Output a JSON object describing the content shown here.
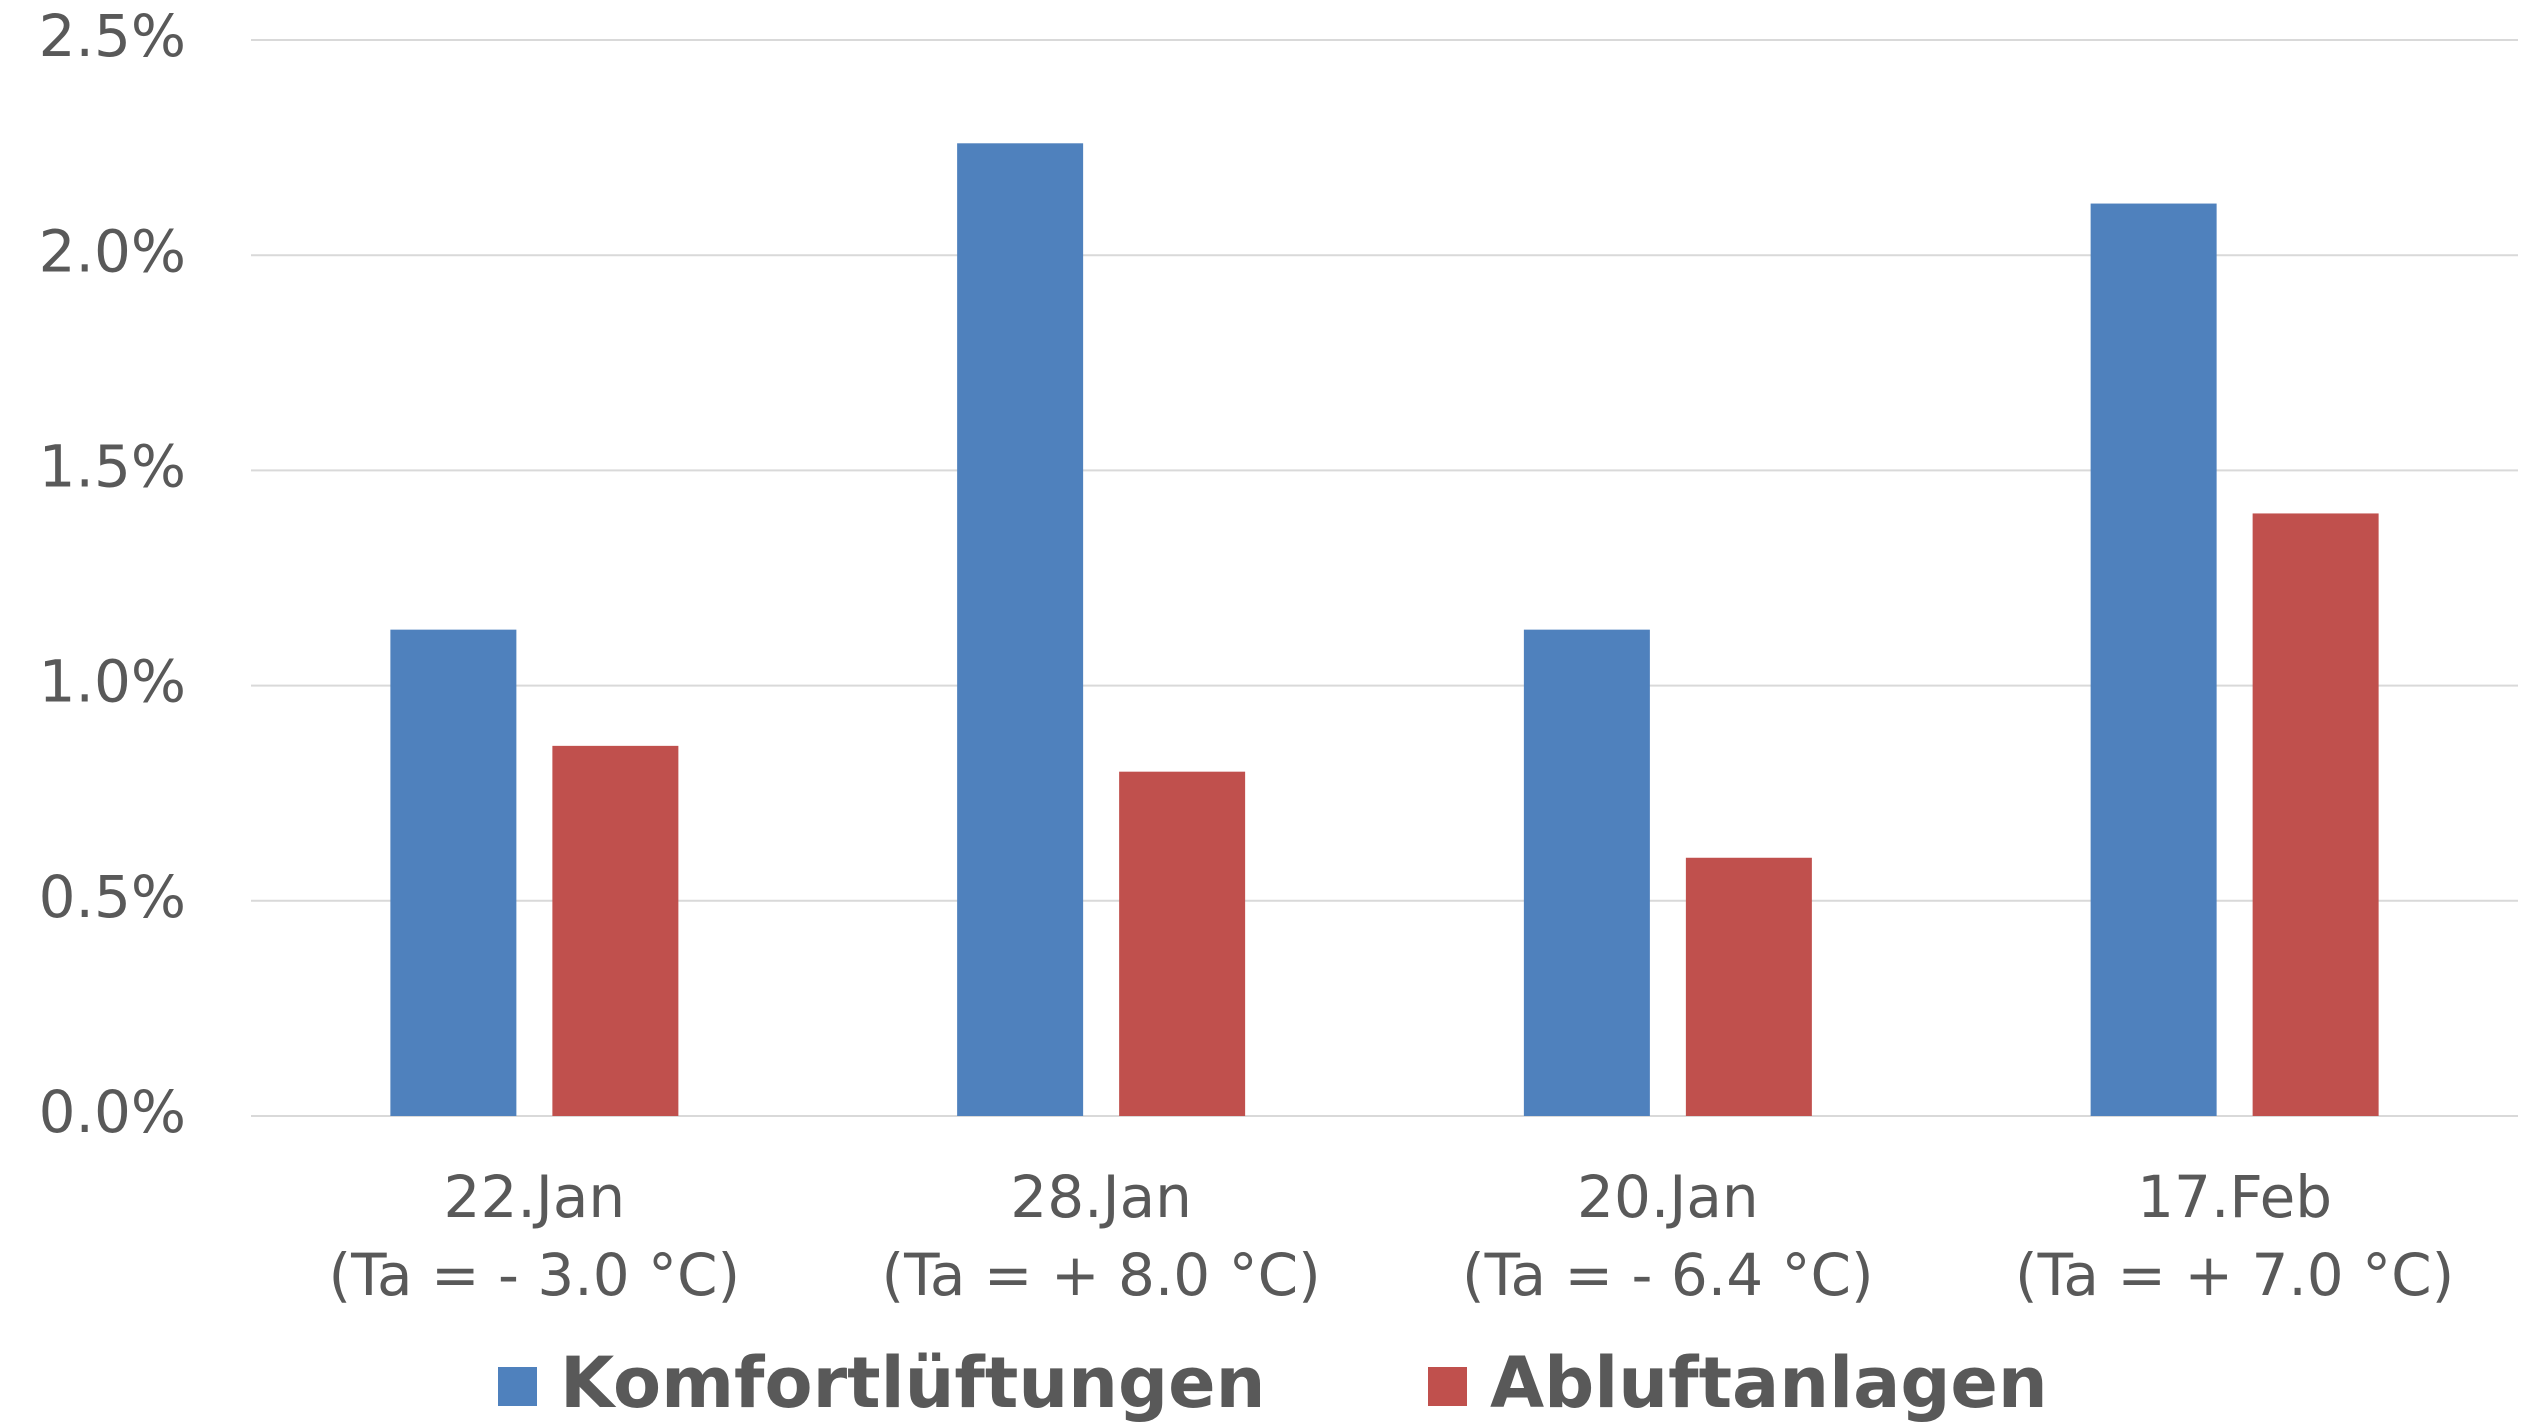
{
  "chart_data": {
    "type": "bar",
    "categories": [
      [
        "22.Jan",
        "(Ta = - 3.0 °C)"
      ],
      [
        "28.Jan",
        "(Ta = + 8.0 °C)"
      ],
      [
        "20.Jan",
        "(Ta = - 6.4 °C)"
      ],
      [
        "17.Feb",
        "(Ta = + 7.0 °C)"
      ]
    ],
    "series": [
      {
        "name": "Komfortlüftungen",
        "color": "#4f81bd",
        "values": [
          1.13,
          2.26,
          1.13,
          2.12
        ]
      },
      {
        "name": "Abluftanlagen",
        "color": "#c0504d",
        "values": [
          0.86,
          0.8,
          0.6,
          1.4
        ]
      }
    ],
    "ylim": [
      0,
      2.5
    ],
    "yticks": [
      {
        "value": 0,
        "label": "0.0%"
      },
      {
        "value": 0.5,
        "label": "0.5%"
      },
      {
        "value": 1,
        "label": "1.0%"
      },
      {
        "value": 1.5,
        "label": "1.5%"
      },
      {
        "value": 2,
        "label": "2.0%"
      },
      {
        "value": 2.5,
        "label": "2.5%"
      }
    ],
    "grid": true,
    "legend": "bottom"
  }
}
